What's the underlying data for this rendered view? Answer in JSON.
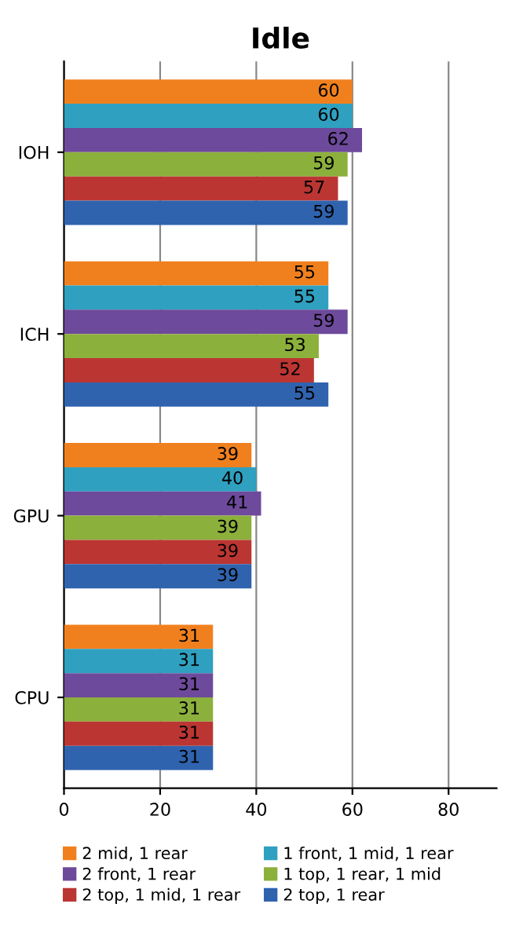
{
  "chart_data": {
    "type": "bar",
    "orientation": "horizontal",
    "title": "Idle",
    "categories": [
      "IOH",
      "ICH",
      "GPU",
      "CPU"
    ],
    "series": [
      {
        "name": "2 mid, 1 rear",
        "color": "#f0801e",
        "values": [
          60,
          55,
          39,
          31
        ]
      },
      {
        "name": "1 front, 1 mid, 1 rear",
        "color": "#2fa0c0",
        "values": [
          60,
          55,
          40,
          31
        ]
      },
      {
        "name": "2 front, 1 rear",
        "color": "#6e4a9c",
        "values": [
          62,
          59,
          41,
          31
        ]
      },
      {
        "name": "1 top, 1 rear, 1 mid",
        "color": "#8cb03c",
        "values": [
          59,
          53,
          39,
          31
        ]
      },
      {
        "name": "2 top, 1 mid, 1 rear",
        "color": "#bb3633",
        "values": [
          57,
          52,
          39,
          31
        ]
      },
      {
        "name": "2 top, 1 rear",
        "color": "#2f63ae",
        "values": [
          59,
          55,
          39,
          31
        ]
      }
    ],
    "xlim": [
      0,
      90
    ],
    "xticks": [
      0,
      20,
      40,
      60,
      80
    ],
    "grid": "x",
    "legend": "bottom",
    "data_labels": true
  }
}
